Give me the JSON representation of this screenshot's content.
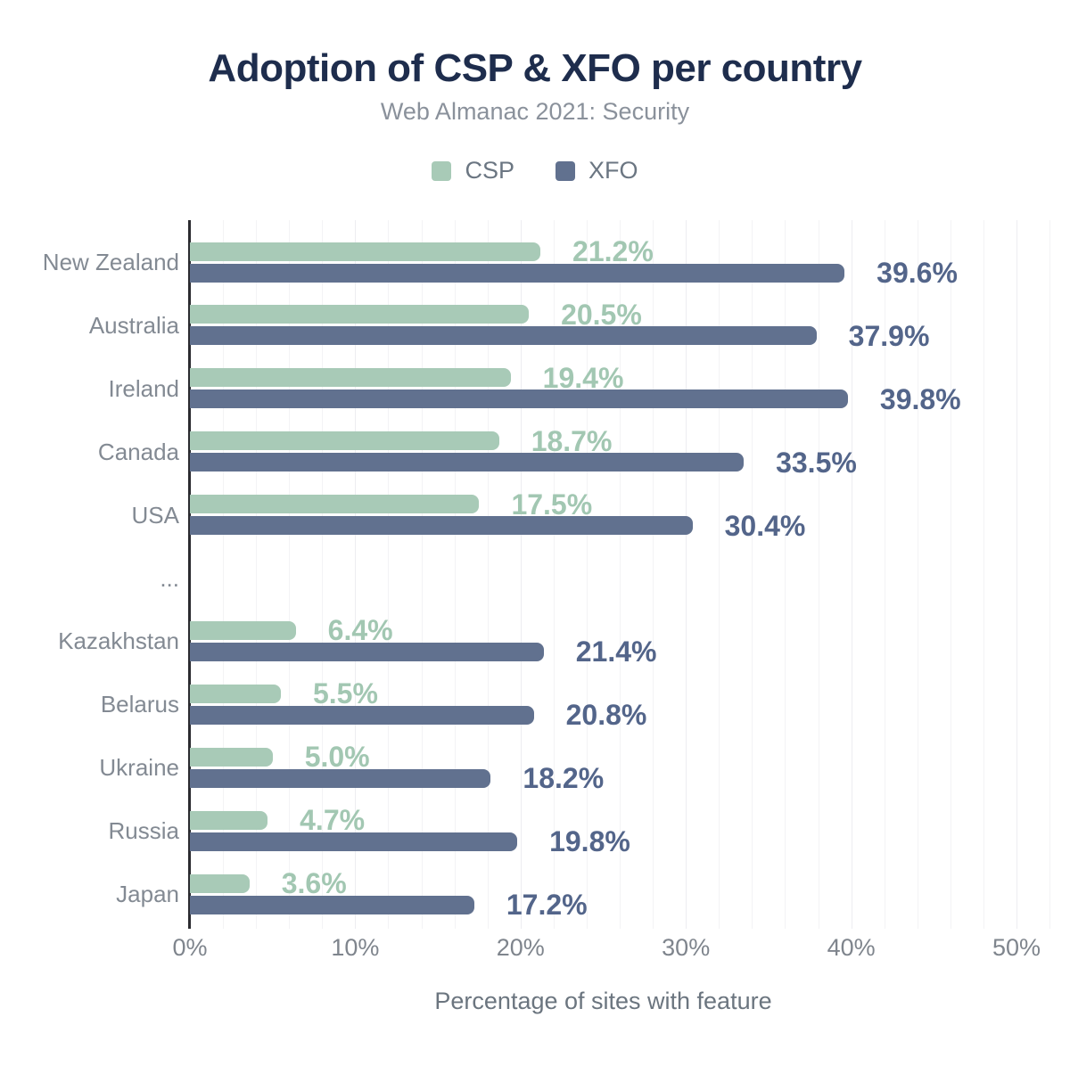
{
  "header": {
    "title": "Adoption of CSP & XFO per country",
    "subtitle": "Web Almanac 2021: Security"
  },
  "legend": [
    {
      "label": "CSP",
      "color": "#a8cab7",
      "icon": "csp-swatch-icon"
    },
    {
      "label": "XFO",
      "color": "#61718f",
      "icon": "xfo-swatch-icon"
    }
  ],
  "chart_data": {
    "type": "bar",
    "orientation": "horizontal",
    "title": "Adoption of CSP & XFO per country",
    "subtitle": "Web Almanac 2021: Security",
    "xlabel": "Percentage of sites with feature",
    "ylabel": "",
    "xlim": [
      0,
      50
    ],
    "grid": true,
    "grid_step_pct": 2,
    "legend_position": "top",
    "categories": [
      "New Zealand",
      "Australia",
      "Ireland",
      "Canada",
      "USA",
      "...",
      "Kazakhstan",
      "Belarus",
      "Ukraine",
      "Russia",
      "Japan"
    ],
    "series": [
      {
        "name": "CSP",
        "color": "#a8cab7",
        "label_color": "#a2c7b2",
        "values": [
          21.2,
          20.5,
          19.4,
          18.7,
          17.5,
          null,
          6.4,
          5.5,
          5.0,
          4.7,
          3.6
        ],
        "labels": [
          "21.2%",
          "20.5%",
          "19.4%",
          "18.7%",
          "17.5%",
          null,
          "6.4%",
          "5.5%",
          "5.0%",
          "4.7%",
          "3.6%"
        ]
      },
      {
        "name": "XFO",
        "color": "#61718f",
        "label_color": "#53658a",
        "values": [
          39.6,
          37.9,
          39.8,
          33.5,
          30.4,
          null,
          21.4,
          20.8,
          18.2,
          19.8,
          17.2
        ],
        "labels": [
          "39.6%",
          "37.9%",
          "39.8%",
          "33.5%",
          "30.4%",
          null,
          "21.4%",
          "20.8%",
          "18.2%",
          "19.8%",
          "17.2%"
        ]
      }
    ],
    "x_ticks": [
      {
        "label": "0%",
        "value": 0
      },
      {
        "label": "10%",
        "value": 10
      },
      {
        "label": "20%",
        "value": 20
      },
      {
        "label": "30%",
        "value": 30
      },
      {
        "label": "40%",
        "value": 40
      },
      {
        "label": "50%",
        "value": 50
      }
    ]
  }
}
